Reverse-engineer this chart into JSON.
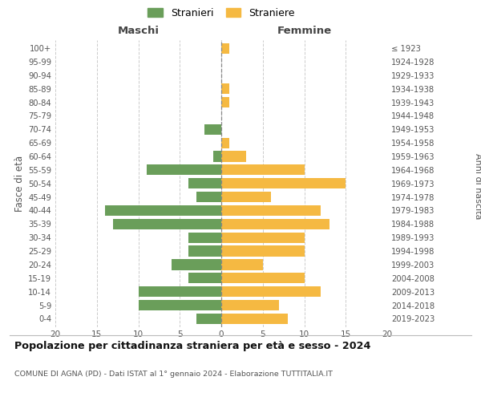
{
  "age_groups": [
    "100+",
    "95-99",
    "90-94",
    "85-89",
    "80-84",
    "75-79",
    "70-74",
    "65-69",
    "60-64",
    "55-59",
    "50-54",
    "45-49",
    "40-44",
    "35-39",
    "30-34",
    "25-29",
    "20-24",
    "15-19",
    "10-14",
    "5-9",
    "0-4"
  ],
  "birth_years": [
    "≤ 1923",
    "1924-1928",
    "1929-1933",
    "1934-1938",
    "1939-1943",
    "1944-1948",
    "1949-1953",
    "1954-1958",
    "1959-1963",
    "1964-1968",
    "1969-1973",
    "1974-1978",
    "1979-1983",
    "1984-1988",
    "1989-1993",
    "1994-1998",
    "1999-2003",
    "2004-2008",
    "2009-2013",
    "2014-2018",
    "2019-2023"
  ],
  "maschi": [
    0,
    0,
    0,
    0,
    0,
    0,
    2,
    0,
    1,
    9,
    4,
    3,
    14,
    13,
    4,
    4,
    6,
    4,
    10,
    10,
    3
  ],
  "femmine": [
    1,
    0,
    0,
    1,
    1,
    0,
    0,
    1,
    3,
    10,
    15,
    6,
    12,
    13,
    10,
    10,
    5,
    10,
    12,
    7,
    8
  ],
  "color_maschi": "#6a9e5a",
  "color_femmine": "#f5b942",
  "background_color": "#ffffff",
  "grid_color": "#cccccc",
  "title": "Popolazione per cittadinanza straniera per età e sesso - 2024",
  "subtitle": "COMUNE DI AGNA (PD) - Dati ISTAT al 1° gennaio 2024 - Elaborazione TUTTITALIA.IT",
  "xlabel_left": "Maschi",
  "xlabel_right": "Femmine",
  "ylabel_left": "Fasce di età",
  "ylabel_right": "Anni di nascita",
  "legend_maschi": "Stranieri",
  "legend_femmine": "Straniere",
  "xlim": 20,
  "bar_height": 0.78
}
